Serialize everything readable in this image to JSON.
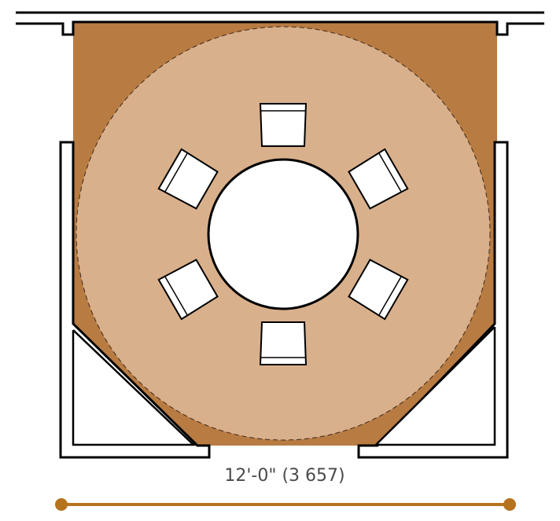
{
  "colors": {
    "floor": "#b87b42",
    "clearance": "#d9b08c",
    "wall": "#000000",
    "furniture": "#ffffff",
    "dimension": "#b5731d",
    "text": "#4a4a4a"
  },
  "icons": {
    "chair": "chair-icon",
    "table": "round-table-icon",
    "dimension_end": "dimension-endpoint-icon"
  },
  "seats": 6,
  "dimension": {
    "label": "12'-0\" (3 657)"
  }
}
